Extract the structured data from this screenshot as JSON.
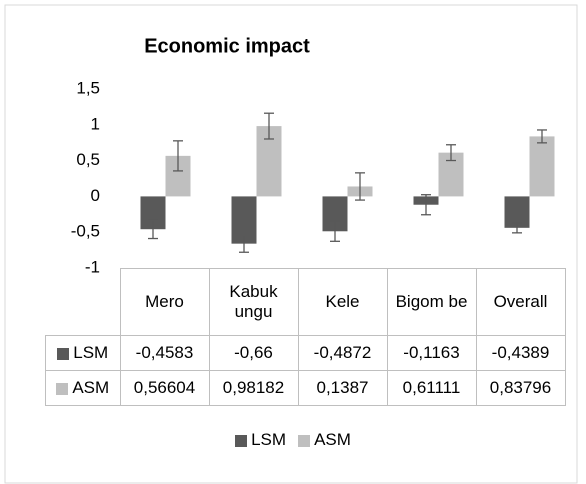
{
  "chart_data": {
    "type": "bar",
    "title": "Economic impact",
    "categories": [
      "Mero",
      "Kabuk ungu",
      "Kele",
      "Bigom be",
      "Overall"
    ],
    "series": [
      {
        "name": "LSM",
        "color": "#595959",
        "values": [
          -0.4583,
          -0.66,
          -0.4872,
          -0.1163,
          -0.4389
        ],
        "value_labels": [
          "-0,4583",
          "-0,66",
          "-0,4872",
          "-0,1163",
          "-0,4389"
        ],
        "errors": [
          0.13,
          0.12,
          0.14,
          0.14,
          0.07
        ]
      },
      {
        "name": "ASM",
        "color": "#bfbfbf",
        "values": [
          0.56604,
          0.98182,
          0.1387,
          0.61111,
          0.83796
        ],
        "value_labels": [
          "0,56604",
          "0,98182",
          "0,1387",
          "0,61111",
          "0,83796"
        ],
        "errors": [
          0.21,
          0.18,
          0.19,
          0.11,
          0.09
        ]
      }
    ],
    "ylim": [
      -1,
      1.5
    ],
    "yticks": [
      {
        "value": -1,
        "label": "-1"
      },
      {
        "value": -0.5,
        "label": "-0,5"
      },
      0,
      1,
      {
        "value": 0.5,
        "label": "0,5"
      },
      {
        "value": 1.5,
        "label": "1,5"
      }
    ],
    "grid": false
  }
}
